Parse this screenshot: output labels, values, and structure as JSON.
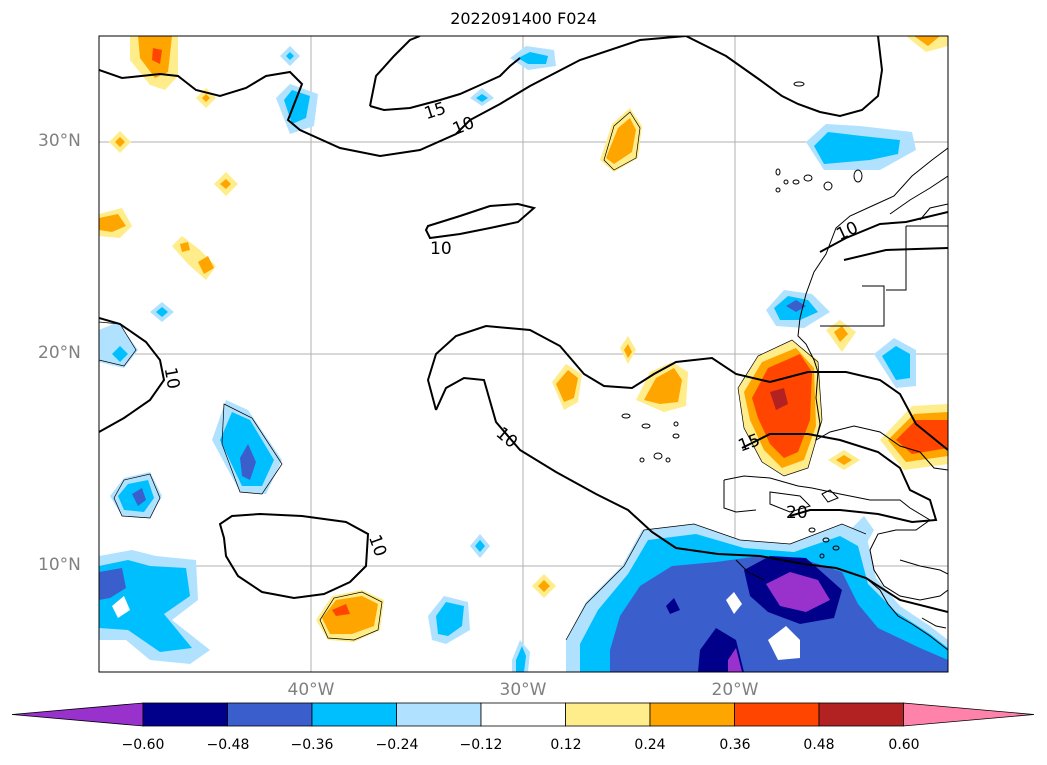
{
  "title": "2022091400 F024",
  "lat_labels": [
    "30°N",
    "20°N",
    "10°N"
  ],
  "lon_labels": [
    "40°W",
    "30°W",
    "20°W"
  ],
  "contour_labels": [
    "15",
    "10",
    "10",
    "10",
    "10",
    "10",
    "15",
    "20",
    "10"
  ],
  "colorbar": {
    "ticks": [
      "−0.60",
      "−0.48",
      "−0.36",
      "−0.24",
      "−0.12",
      "0.12",
      "0.24",
      "0.36",
      "0.48",
      "0.60"
    ],
    "colors": [
      "#9932cc",
      "#00008b",
      "#3a5fcd",
      "#00bfff",
      "#b0e2ff",
      "#ffffff",
      "#ffec8b",
      "#ffa500",
      "#ff4500",
      "#b22222",
      "#ff82ab"
    ]
  },
  "fill_colors": {
    "neg_strong": "#9932cc",
    "neg_dark": "#00008b",
    "neg_mid": "#3a5fcd",
    "neg_light": "#00bfff",
    "neg_pale": "#b0e2ff",
    "pos_pale": "#ffec8b",
    "pos_mid": "#ffa500",
    "pos_strong": "#ff4500",
    "pos_dark": "#b22222"
  }
}
